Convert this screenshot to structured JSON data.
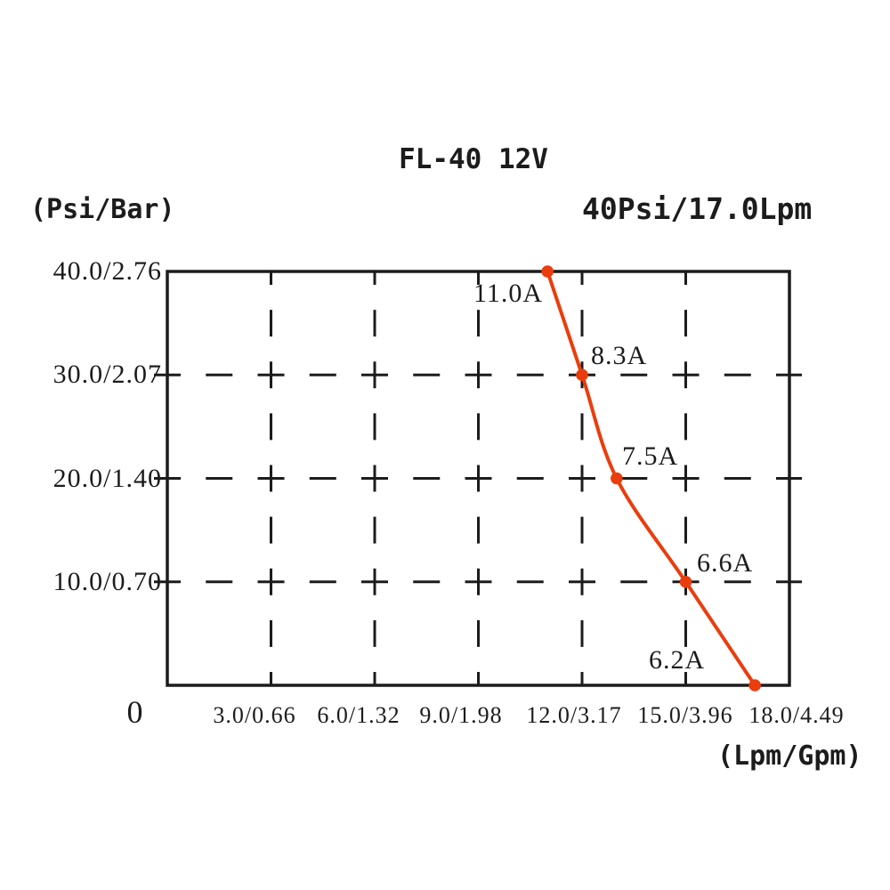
{
  "title": "FL-40 12V",
  "subtitle": "40Psi/17.0Lpm",
  "y_axis": {
    "unit_label": "(Psi/Bar)",
    "ticks": [
      "40.0/2.76",
      "30.0/2.07",
      "20.0/1.40",
      "10.0/0.70"
    ],
    "origin_label": "0"
  },
  "x_axis": {
    "unit_label": "(Lpm/Gpm)",
    "ticks": [
      "3.0/0.66",
      "6.0/1.32",
      "9.0/1.98",
      "12.0/3.17",
      "15.0/3.96",
      "18.0/4.49"
    ]
  },
  "annotations": [
    "11.0A",
    "8.3A",
    "7.5A",
    "6.6A",
    "6.2A"
  ],
  "colors": {
    "curve": "#ea3d0e",
    "axis": "#1c1c1c"
  },
  "chart_data": {
    "type": "line",
    "title": "FL-40 12V",
    "subtitle": "40Psi/17.0Lpm",
    "xlabel": "(Lpm/Gpm)",
    "ylabel": "(Psi/Bar)",
    "xlim": [
      0,
      18
    ],
    "ylim": [
      0,
      40
    ],
    "x_tick_labels": [
      "3.0/0.66",
      "6.0/1.32",
      "9.0/1.98",
      "12.0/3.17",
      "15.0/3.96",
      "18.0/4.49"
    ],
    "y_tick_labels": [
      "0",
      "10.0/0.70",
      "20.0/1.40",
      "30.0/2.07",
      "40.0/2.76"
    ],
    "grid": "dashed",
    "legend": "none",
    "series": [
      {
        "name": "pressure-flow-curve",
        "points": [
          {
            "flow_lpm": 11.0,
            "pressure_psi": 40.0,
            "current_label": "11.0A"
          },
          {
            "flow_lpm": 12.0,
            "pressure_psi": 30.0,
            "current_label": "8.3A"
          },
          {
            "flow_lpm": 13.0,
            "pressure_psi": 20.0,
            "current_label": "7.5A"
          },
          {
            "flow_lpm": 15.0,
            "pressure_psi": 10.0,
            "current_label": "6.6A"
          },
          {
            "flow_lpm": 17.0,
            "pressure_psi": 0.0,
            "current_label": "6.2A"
          }
        ]
      }
    ]
  }
}
